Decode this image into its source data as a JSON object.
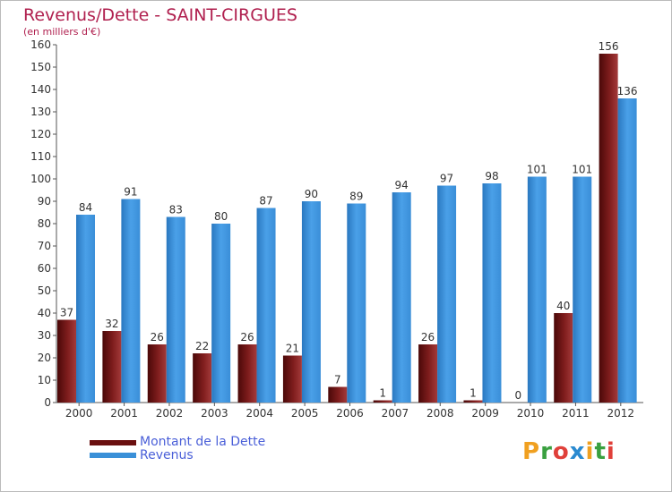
{
  "title": "Revenus/Dette - SAINT-CIRGUES",
  "subtitle": "(en milliers d'€)",
  "logo": {
    "letters": [
      "P",
      "r",
      "o",
      "x",
      "i",
      "t",
      "i"
    ],
    "colors": [
      "#f0a020",
      "#3aa040",
      "#e0403a",
      "#2a8ad0",
      "#f0a020",
      "#3aa040",
      "#e0403a"
    ]
  },
  "chart_data": {
    "type": "bar",
    "categories": [
      "2000",
      "2001",
      "2002",
      "2003",
      "2004",
      "2005",
      "2006",
      "2007",
      "2008",
      "2009",
      "2010",
      "2011",
      "2012"
    ],
    "series": [
      {
        "name": "Montant de la Dette",
        "color": "#7a1a1a",
        "values": [
          37,
          32,
          26,
          22,
          26,
          21,
          7,
          1,
          26,
          1,
          0,
          40,
          156
        ]
      },
      {
        "name": "Revenus",
        "color": "#3a90d8",
        "values": [
          84,
          91,
          83,
          80,
          87,
          90,
          89,
          94,
          97,
          98,
          101,
          101,
          136
        ]
      }
    ],
    "ylim": [
      0,
      160
    ],
    "yticks": [
      0,
      10,
      20,
      30,
      40,
      50,
      60,
      70,
      80,
      90,
      100,
      110,
      120,
      130,
      140,
      150,
      160
    ],
    "grid": false,
    "legend_position": "bottom-left"
  }
}
